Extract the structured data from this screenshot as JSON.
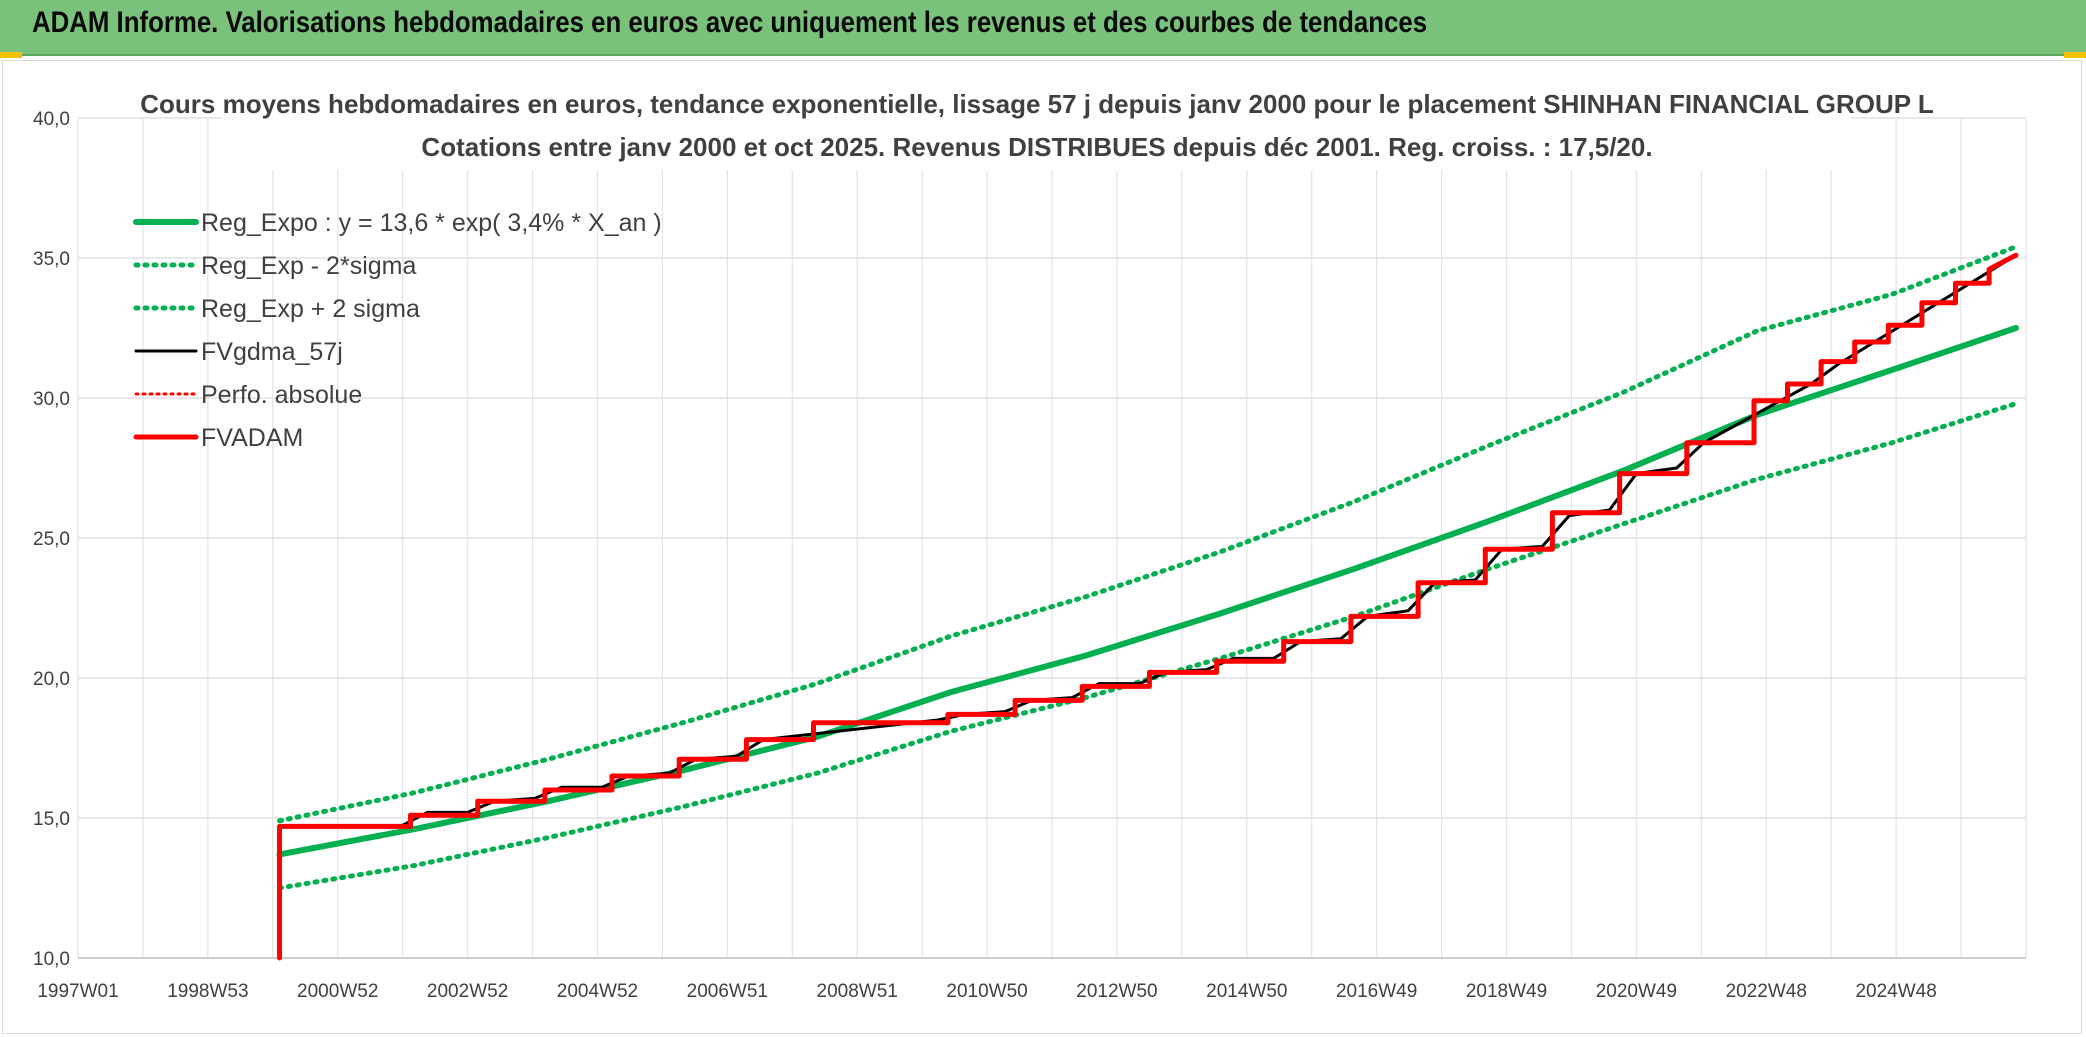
{
  "banner": {
    "title": "ADAM Informe. Valorisations hebdomadaires en euros avec uniquement les revenus et des courbes de tendances"
  },
  "chart_data": {
    "type": "line",
    "title": "Cours moyens hebdomadaires en euros, tendance exponentielle, lissage 57 j depuis janv 2000 pour le placement SHINHAN FINANCIAL GROUP L",
    "subtitle": "Cotations entre janv 2000 et oct 2025. Revenus DISTRIBUES depuis déc 2001. Reg. croiss. : 17,5/20.",
    "xlabel": "",
    "ylabel": "",
    "x_tick_labels": [
      "1997W01",
      "1998W53",
      "2000W52",
      "2002W52",
      "2004W52",
      "2006W51",
      "2008W51",
      "2010W50",
      "2012W50",
      "2014W50",
      "2016W49",
      "2018W49",
      "2020W49",
      "2022W48",
      "2024W48"
    ],
    "x_range": [
      1997.0,
      2026.0
    ],
    "ylim": [
      10,
      40
    ],
    "y_ticks": [
      "10,0",
      "15,0",
      "20,0",
      "25,0",
      "30,0",
      "35,0",
      "40,0"
    ],
    "grid": true,
    "legend_position": "top-left",
    "colors": {
      "green": "#00b050",
      "black": "#000000",
      "red": "#ff0000"
    },
    "series": [
      {
        "name": "Reg_Expo : y = 13,6 * exp( 3,4% *  X_an )",
        "style": "solid-green",
        "x": [
          2000.0,
          2002.0,
          2004.0,
          2006.0,
          2008.0,
          2010.0,
          2012.0,
          2014.0,
          2016.0,
          2018.0,
          2020.0,
          2022.0,
          2024.0,
          2025.85
        ],
        "y": [
          13.7,
          14.6,
          15.6,
          16.7,
          17.9,
          19.5,
          20.8,
          22.3,
          23.9,
          25.6,
          27.4,
          29.4,
          31.0,
          32.5
        ]
      },
      {
        "name": "Reg_Exp - 2*sigma",
        "style": "dotted-green",
        "x": [
          2000.0,
          2002.0,
          2004.0,
          2006.0,
          2008.0,
          2010.0,
          2012.0,
          2014.0,
          2016.0,
          2018.0,
          2020.0,
          2022.0,
          2024.0,
          2025.85
        ],
        "y": [
          12.5,
          13.3,
          14.3,
          15.4,
          16.6,
          18.1,
          19.3,
          20.7,
          22.2,
          23.9,
          25.5,
          27.1,
          28.4,
          29.8
        ]
      },
      {
        "name": "Reg_Exp + 2 sigma",
        "style": "dotted-green",
        "x": [
          2000.0,
          2002.0,
          2004.0,
          2006.0,
          2008.0,
          2010.0,
          2012.0,
          2014.0,
          2016.0,
          2018.0,
          2020.0,
          2022.0,
          2024.0,
          2025.85
        ],
        "y": [
          14.9,
          15.9,
          17.1,
          18.4,
          19.8,
          21.5,
          22.9,
          24.5,
          26.3,
          28.3,
          30.2,
          32.4,
          33.7,
          35.4
        ]
      },
      {
        "name": "FVgdma_57j",
        "style": "solid-black",
        "x": [
          2000.0,
          2001.8,
          2002.2,
          2002.8,
          2003.2,
          2003.8,
          2004.2,
          2004.8,
          2005.2,
          2005.8,
          2006.2,
          2006.8,
          2007.2,
          2009.8,
          2010.2,
          2010.8,
          2011.2,
          2011.8,
          2012.2,
          2012.8,
          2013.2,
          2013.8,
          2014.2,
          2014.8,
          2015.2,
          2015.8,
          2016.2,
          2016.8,
          2017.2,
          2017.8,
          2018.2,
          2018.8,
          2019.2,
          2019.8,
          2020.2,
          2020.8,
          2021.2,
          2022.8,
          2023.2,
          2025.85
        ],
        "y": [
          14.7,
          14.7,
          15.2,
          15.2,
          15.6,
          15.7,
          16.1,
          16.1,
          16.5,
          16.6,
          17.1,
          17.2,
          17.8,
          18.5,
          18.7,
          18.8,
          19.2,
          19.3,
          19.8,
          19.8,
          20.2,
          20.3,
          20.7,
          20.7,
          21.3,
          21.4,
          22.2,
          22.4,
          23.4,
          23.5,
          24.6,
          24.7,
          25.8,
          26.0,
          27.3,
          27.5,
          28.4,
          30.5,
          31.2,
          35.1
        ]
      },
      {
        "name": "Perfo. absolue",
        "style": "dotted-red",
        "x": [
          2000.0,
          2025.85
        ],
        "y": [
          14.7,
          35.1
        ]
      },
      {
        "name": "FVADAM",
        "style": "solid-red",
        "x": [
          2000.0,
          2000.0,
          2001.95,
          2001.95,
          2002.95,
          2002.95,
          2003.95,
          2003.95,
          2004.95,
          2004.95,
          2005.95,
          2005.95,
          2006.95,
          2006.95,
          2007.95,
          2007.95,
          2009.95,
          2009.95,
          2010.95,
          2010.95,
          2011.95,
          2011.95,
          2012.95,
          2012.95,
          2013.95,
          2013.95,
          2014.95,
          2014.95,
          2015.95,
          2015.95,
          2016.95,
          2016.95,
          2017.95,
          2017.95,
          2018.95,
          2018.95,
          2019.95,
          2019.95,
          2020.95,
          2020.95,
          2021.95,
          2021.95,
          2022.45,
          2022.45,
          2022.95,
          2022.95,
          2023.45,
          2023.45,
          2023.95,
          2023.95,
          2024.45,
          2024.45,
          2024.95,
          2024.95,
          2025.45,
          2025.45,
          2025.85
        ],
        "y": [
          10.0,
          14.7,
          14.7,
          15.1,
          15.1,
          15.6,
          15.6,
          16.0,
          16.0,
          16.5,
          16.5,
          17.1,
          17.1,
          17.8,
          17.8,
          18.4,
          18.4,
          18.7,
          18.7,
          19.2,
          19.2,
          19.7,
          19.7,
          20.2,
          20.2,
          20.6,
          20.6,
          21.3,
          21.3,
          22.2,
          22.2,
          23.4,
          23.4,
          24.6,
          24.6,
          25.9,
          25.9,
          27.3,
          27.3,
          28.4,
          28.4,
          29.9,
          29.9,
          30.5,
          30.5,
          31.3,
          31.3,
          32.0,
          32.0,
          32.6,
          32.6,
          33.4,
          33.4,
          34.1,
          34.1,
          34.6,
          35.1
        ]
      }
    ]
  }
}
